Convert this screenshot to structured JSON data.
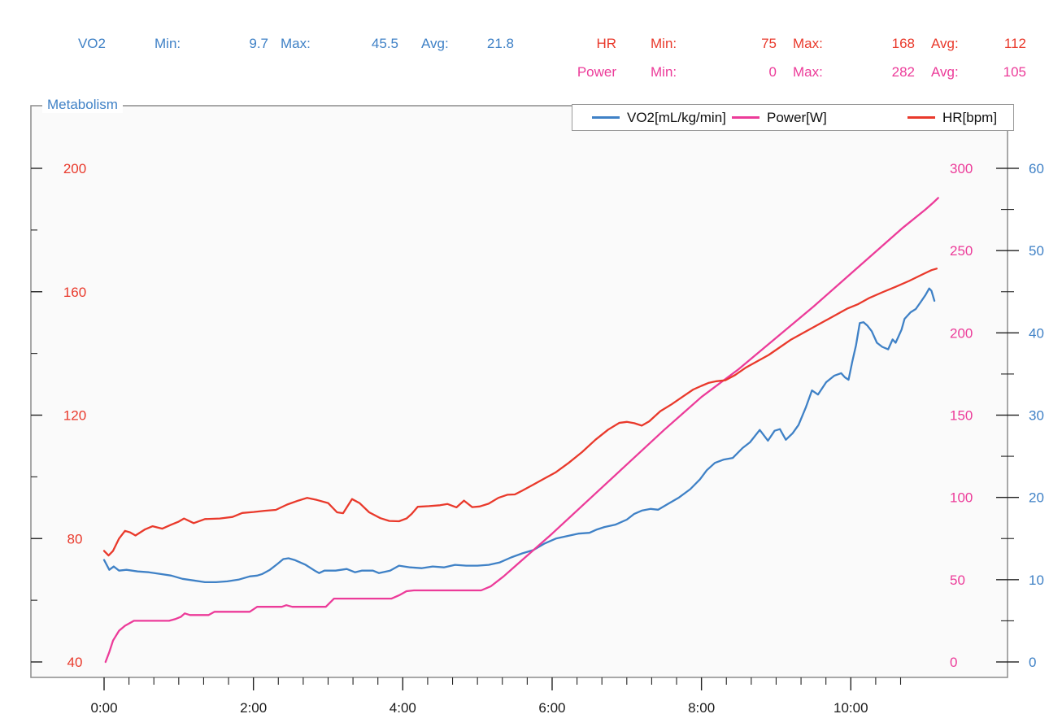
{
  "colors": {
    "vo2": "#3f81c6",
    "power": "#ec3b99",
    "hr": "#e9392b",
    "tick": "#222222",
    "xlabel": "#1a1a1a",
    "frame": "#8c8c8c",
    "plot_bg": "#fafafa"
  },
  "stats": {
    "vo2": {
      "name": "VO2",
      "min_label": "Min:",
      "min": "9.7",
      "max_label": "Max:",
      "max": "45.5",
      "avg_label": "Avg:",
      "avg": "21.8"
    },
    "hr": {
      "name": "HR",
      "min_label": "Min:",
      "min": "75",
      "max_label": "Max:",
      "max": "168",
      "avg_label": "Avg:",
      "avg": "112"
    },
    "power": {
      "name": "Power",
      "min_label": "Min:",
      "min": "0",
      "max_label": "Max:",
      "max": "282",
      "avg_label": "Avg:",
      "avg": "105"
    }
  },
  "chart": {
    "title": "Metabolism"
  },
  "legend": {
    "items": [
      {
        "label": "VO2[mL/kg/min]",
        "color": "#3f81c6"
      },
      {
        "label": "Power[W]",
        "color": "#ec3b99"
      },
      {
        "label": "HR[bpm]",
        "color": "#e9392b"
      }
    ]
  },
  "chart_data": {
    "type": "line",
    "title": "Metabolism",
    "x_axis": {
      "unit": "time (m:ss)",
      "major_ticks": [
        "0:00",
        "2:00",
        "4:00",
        "6:00",
        "8:00",
        "10:00"
      ],
      "major_minutes": [
        0,
        2,
        4,
        6,
        8,
        10
      ],
      "minor_step_minutes": 0.33333,
      "minor_end_minutes": 10.6667
    },
    "y_axes": [
      {
        "id": "hr",
        "label": "HR[bpm]",
        "side": "left",
        "color": "#e9392b",
        "range": [
          40,
          200
        ],
        "ticks": [
          40,
          80,
          120,
          160,
          200
        ]
      },
      {
        "id": "power",
        "label": "Power[W]",
        "side": "right-inner",
        "color": "#ec3b99",
        "range": [
          0,
          300
        ],
        "ticks": [
          0,
          50,
          100,
          150,
          200,
          250,
          300
        ]
      },
      {
        "id": "vo2",
        "label": "VO2[mL/kg/min]",
        "side": "right-outer",
        "color": "#3f81c6",
        "range": [
          0,
          60
        ],
        "ticks": [
          0,
          10,
          20,
          30,
          40,
          50,
          60
        ]
      }
    ],
    "series": [
      {
        "name": "VO2[mL/kg/min]",
        "axis": "vo2",
        "color": "#3f81c6",
        "points": [
          [
            0,
            12.4
          ],
          [
            0.07,
            11.2
          ],
          [
            0.13,
            11.6
          ],
          [
            0.2,
            11.1
          ],
          [
            0.3,
            11.2
          ],
          [
            0.45,
            11.0
          ],
          [
            0.6,
            10.9
          ],
          [
            0.75,
            10.7
          ],
          [
            0.9,
            10.5
          ],
          [
            1.05,
            10.1
          ],
          [
            1.2,
            9.9
          ],
          [
            1.35,
            9.7
          ],
          [
            1.5,
            9.7
          ],
          [
            1.65,
            9.8
          ],
          [
            1.8,
            10.0
          ],
          [
            1.95,
            10.4
          ],
          [
            2.05,
            10.5
          ],
          [
            2.12,
            10.7
          ],
          [
            2.22,
            11.2
          ],
          [
            2.32,
            11.9
          ],
          [
            2.4,
            12.5
          ],
          [
            2.47,
            12.6
          ],
          [
            2.55,
            12.4
          ],
          [
            2.7,
            11.8
          ],
          [
            2.82,
            11.1
          ],
          [
            2.88,
            10.8
          ],
          [
            2.95,
            11.1
          ],
          [
            3.1,
            11.1
          ],
          [
            3.25,
            11.3
          ],
          [
            3.36,
            10.9
          ],
          [
            3.45,
            11.1
          ],
          [
            3.6,
            11.1
          ],
          [
            3.68,
            10.8
          ],
          [
            3.83,
            11.1
          ],
          [
            3.95,
            11.7
          ],
          [
            4.1,
            11.5
          ],
          [
            4.25,
            11.4
          ],
          [
            4.4,
            11.6
          ],
          [
            4.55,
            11.5
          ],
          [
            4.7,
            11.8
          ],
          [
            4.85,
            11.7
          ],
          [
            5.0,
            11.7
          ],
          [
            5.15,
            11.8
          ],
          [
            5.3,
            12.1
          ],
          [
            5.45,
            12.7
          ],
          [
            5.6,
            13.2
          ],
          [
            5.75,
            13.6
          ],
          [
            5.9,
            14.4
          ],
          [
            6.05,
            15.0
          ],
          [
            6.2,
            15.3
          ],
          [
            6.35,
            15.6
          ],
          [
            6.5,
            15.7
          ],
          [
            6.6,
            16.1
          ],
          [
            6.7,
            16.4
          ],
          [
            6.85,
            16.7
          ],
          [
            7.0,
            17.3
          ],
          [
            7.1,
            18.0
          ],
          [
            7.2,
            18.4
          ],
          [
            7.32,
            18.6
          ],
          [
            7.42,
            18.5
          ],
          [
            7.55,
            19.2
          ],
          [
            7.7,
            20.0
          ],
          [
            7.85,
            21.0
          ],
          [
            7.98,
            22.2
          ],
          [
            8.07,
            23.3
          ],
          [
            8.18,
            24.2
          ],
          [
            8.3,
            24.6
          ],
          [
            8.42,
            24.8
          ],
          [
            8.55,
            26.0
          ],
          [
            8.65,
            26.7
          ],
          [
            8.78,
            28.2
          ],
          [
            8.89,
            26.9
          ],
          [
            8.98,
            28.1
          ],
          [
            9.05,
            28.3
          ],
          [
            9.13,
            27.0
          ],
          [
            9.22,
            27.8
          ],
          [
            9.3,
            28.8
          ],
          [
            9.4,
            31.0
          ],
          [
            9.48,
            33.0
          ],
          [
            9.56,
            32.5
          ],
          [
            9.67,
            34.0
          ],
          [
            9.78,
            34.8
          ],
          [
            9.87,
            35.1
          ],
          [
            9.92,
            34.6
          ],
          [
            9.97,
            34.3
          ],
          [
            10.02,
            36.5
          ],
          [
            10.07,
            38.5
          ],
          [
            10.12,
            41.2
          ],
          [
            10.17,
            41.3
          ],
          [
            10.22,
            40.9
          ],
          [
            10.28,
            40.2
          ],
          [
            10.35,
            38.8
          ],
          [
            10.42,
            38.3
          ],
          [
            10.5,
            38.0
          ],
          [
            10.56,
            39.2
          ],
          [
            10.6,
            38.8
          ],
          [
            10.64,
            39.6
          ],
          [
            10.68,
            40.4
          ],
          [
            10.72,
            41.7
          ],
          [
            10.8,
            42.5
          ],
          [
            10.87,
            42.9
          ],
          [
            10.94,
            43.8
          ],
          [
            11.0,
            44.6
          ],
          [
            11.05,
            45.4
          ],
          [
            11.08,
            45.1
          ],
          [
            11.12,
            43.9
          ]
        ]
      },
      {
        "name": "Power[W]",
        "axis": "power",
        "color": "#ec3b99",
        "points": [
          [
            0.02,
            0
          ],
          [
            0.07,
            6
          ],
          [
            0.12,
            13
          ],
          [
            0.2,
            19
          ],
          [
            0.28,
            22
          ],
          [
            0.4,
            25
          ],
          [
            0.87,
            25
          ],
          [
            0.95,
            26
          ],
          [
            1.03,
            27.5
          ],
          [
            1.08,
            29.5
          ],
          [
            1.15,
            28.5
          ],
          [
            1.4,
            28.5
          ],
          [
            1.48,
            30.5
          ],
          [
            1.95,
            30.5
          ],
          [
            2.05,
            33.5
          ],
          [
            2.38,
            33.5
          ],
          [
            2.44,
            34.5
          ],
          [
            2.52,
            33.5
          ],
          [
            2.97,
            33.5
          ],
          [
            3.08,
            38.5
          ],
          [
            3.85,
            38.5
          ],
          [
            3.95,
            40.5
          ],
          [
            4.05,
            43
          ],
          [
            4.15,
            43.5
          ],
          [
            5.05,
            43.5
          ],
          [
            5.18,
            46
          ],
          [
            5.35,
            52
          ],
          [
            5.6,
            62
          ],
          [
            6.0,
            78
          ],
          [
            6.5,
            99
          ],
          [
            7.0,
            120
          ],
          [
            7.5,
            141
          ],
          [
            8.0,
            161
          ],
          [
            8.5,
            178
          ],
          [
            9.0,
            197
          ],
          [
            9.5,
            216
          ],
          [
            10.0,
            236
          ],
          [
            10.4,
            252
          ],
          [
            10.7,
            264
          ],
          [
            11.0,
            275
          ],
          [
            11.1,
            279
          ],
          [
            11.17,
            282
          ]
        ]
      },
      {
        "name": "HR[bpm]",
        "axis": "hr",
        "color": "#e9392b",
        "points": [
          [
            0,
            76
          ],
          [
            0.06,
            74.5
          ],
          [
            0.12,
            76
          ],
          [
            0.2,
            80
          ],
          [
            0.28,
            82.5
          ],
          [
            0.35,
            82
          ],
          [
            0.42,
            81
          ],
          [
            0.55,
            83
          ],
          [
            0.65,
            84
          ],
          [
            0.78,
            83.2
          ],
          [
            0.9,
            84.5
          ],
          [
            1.0,
            85.5
          ],
          [
            1.07,
            86.5
          ],
          [
            1.2,
            85
          ],
          [
            1.35,
            86.3
          ],
          [
            1.55,
            86.5
          ],
          [
            1.72,
            87
          ],
          [
            1.85,
            88.3
          ],
          [
            2.0,
            88.6
          ],
          [
            2.15,
            89
          ],
          [
            2.3,
            89.3
          ],
          [
            2.45,
            91
          ],
          [
            2.6,
            92.3
          ],
          [
            2.72,
            93.2
          ],
          [
            2.85,
            92.5
          ],
          [
            3.0,
            91.5
          ],
          [
            3.12,
            88.5
          ],
          [
            3.2,
            88.2
          ],
          [
            3.32,
            92.8
          ],
          [
            3.42,
            91.5
          ],
          [
            3.55,
            88.5
          ],
          [
            3.7,
            86.6
          ],
          [
            3.82,
            85.7
          ],
          [
            3.95,
            85.6
          ],
          [
            4.05,
            86.5
          ],
          [
            4.12,
            88
          ],
          [
            4.2,
            90.3
          ],
          [
            4.35,
            90.5
          ],
          [
            4.5,
            90.8
          ],
          [
            4.6,
            91.2
          ],
          [
            4.72,
            90.1
          ],
          [
            4.82,
            92.3
          ],
          [
            4.93,
            90.2
          ],
          [
            5.03,
            90.4
          ],
          [
            5.15,
            91.3
          ],
          [
            5.28,
            93.2
          ],
          [
            5.4,
            94.2
          ],
          [
            5.5,
            94.3
          ],
          [
            5.6,
            95.5
          ],
          [
            5.75,
            97.5
          ],
          [
            5.9,
            99.5
          ],
          [
            6.05,
            101.5
          ],
          [
            6.22,
            104.5
          ],
          [
            6.4,
            108
          ],
          [
            6.58,
            112
          ],
          [
            6.75,
            115.3
          ],
          [
            6.9,
            117.5
          ],
          [
            7.0,
            117.8
          ],
          [
            7.1,
            117.4
          ],
          [
            7.2,
            116.6
          ],
          [
            7.3,
            118
          ],
          [
            7.45,
            121.3
          ],
          [
            7.6,
            123.5
          ],
          [
            7.75,
            126
          ],
          [
            7.89,
            128.3
          ],
          [
            8.0,
            129.5
          ],
          [
            8.1,
            130.5
          ],
          [
            8.2,
            131
          ],
          [
            8.32,
            131.3
          ],
          [
            8.45,
            133
          ],
          [
            8.6,
            135.5
          ],
          [
            8.75,
            137.5
          ],
          [
            8.9,
            139.5
          ],
          [
            9.05,
            142
          ],
          [
            9.2,
            144.5
          ],
          [
            9.35,
            146.5
          ],
          [
            9.5,
            148.5
          ],
          [
            9.65,
            150.5
          ],
          [
            9.8,
            152.5
          ],
          [
            9.95,
            154.5
          ],
          [
            10.1,
            156
          ],
          [
            10.25,
            158
          ],
          [
            10.42,
            159.8
          ],
          [
            10.6,
            161.6
          ],
          [
            10.78,
            163.5
          ],
          [
            10.95,
            165.5
          ],
          [
            11.08,
            167
          ],
          [
            11.15,
            167.5
          ]
        ]
      }
    ],
    "legend_position": "top-right",
    "grid": false
  }
}
